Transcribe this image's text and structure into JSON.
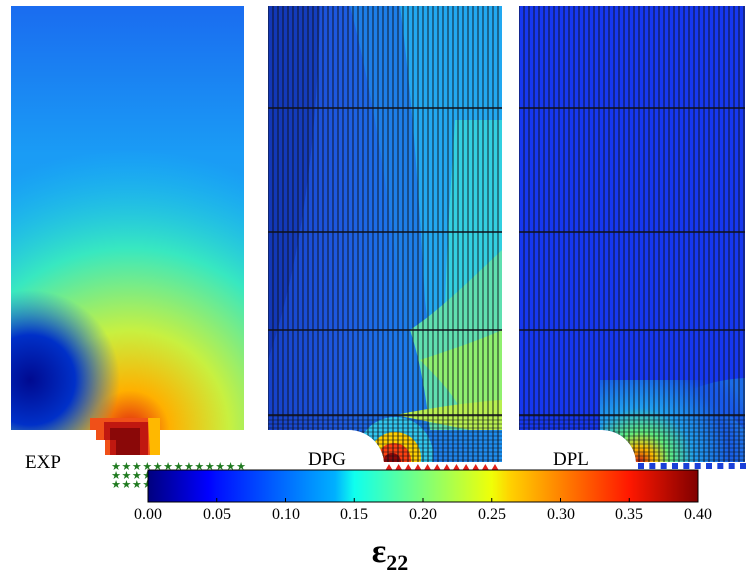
{
  "panels": [
    {
      "label": "EXP",
      "marker_color": "#1f7a1f",
      "marker_shape": "star"
    },
    {
      "label": "DPG",
      "marker_color": "#e0201a",
      "marker_shape": "triangle"
    },
    {
      "label": "DPL",
      "marker_color": "#1a3fd8",
      "marker_shape": "square"
    }
  ],
  "colorbar": {
    "ticks": [
      "0.00",
      "0.05",
      "0.10",
      "0.15",
      "0.20",
      "0.25",
      "0.30",
      "0.35",
      "0.40"
    ],
    "symbol": "ε",
    "subscript": "22",
    "colormap": "jet"
  }
}
